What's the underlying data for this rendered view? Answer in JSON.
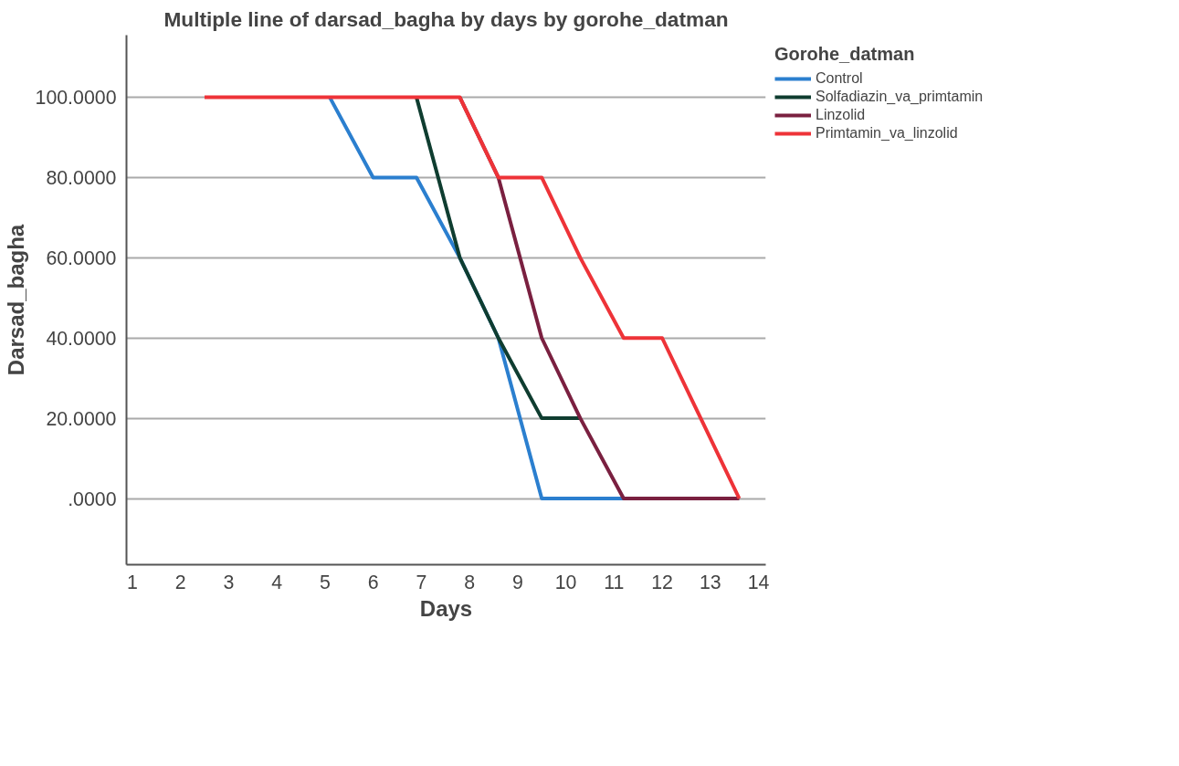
{
  "chart_data": {
    "type": "line",
    "title": "Multiple line of darsad_bagha by days by gorohe_datman",
    "xlabel": "Days",
    "ylabel": "Darsad_bagha",
    "legend_title": "Gorohe_datman",
    "x": [
      2.5,
      5.1,
      6.0,
      6.9,
      7.8,
      8.6,
      9.5,
      10.3,
      11.2,
      12.0,
      12.8,
      13.6
    ],
    "series": [
      {
        "name": "Control",
        "color": "#2b7fcf",
        "values": [
          null,
          100,
          80,
          80,
          60,
          40,
          0,
          0,
          0,
          null,
          null,
          null
        ]
      },
      {
        "name": "Solfadiazin_va_primtamin",
        "color": "#0f3d30",
        "values": [
          null,
          null,
          null,
          100,
          60,
          40,
          20,
          20,
          null,
          null,
          null,
          null
        ]
      },
      {
        "name": "Linzolid",
        "color": "#7a2040",
        "values": [
          null,
          null,
          null,
          null,
          100,
          80,
          40,
          20,
          0,
          0,
          0,
          0
        ]
      },
      {
        "name": "Primtamin_va_linzolid",
        "color": "#ee3338",
        "values": [
          100,
          100,
          100,
          100,
          100,
          80,
          80,
          60,
          40,
          40,
          20,
          0
        ]
      }
    ],
    "xlim": [
      0.88,
      14.15
    ],
    "xticks": [
      1,
      2,
      3,
      4,
      5,
      6,
      7,
      8,
      9,
      10,
      11,
      12,
      13,
      14
    ],
    "ylim": [
      -16.5,
      115.5
    ],
    "yticks": [
      {
        "value": 0,
        "label": ".0000"
      },
      {
        "value": 20,
        "label": "20.0000"
      },
      {
        "value": 40,
        "label": "40.0000"
      },
      {
        "value": 60,
        "label": "60.0000"
      },
      {
        "value": 80,
        "label": "80.0000"
      },
      {
        "value": 100,
        "label": "100.0000"
      }
    ],
    "grid": "y",
    "legend": "top right",
    "marker": "none",
    "line_style": "solid"
  }
}
